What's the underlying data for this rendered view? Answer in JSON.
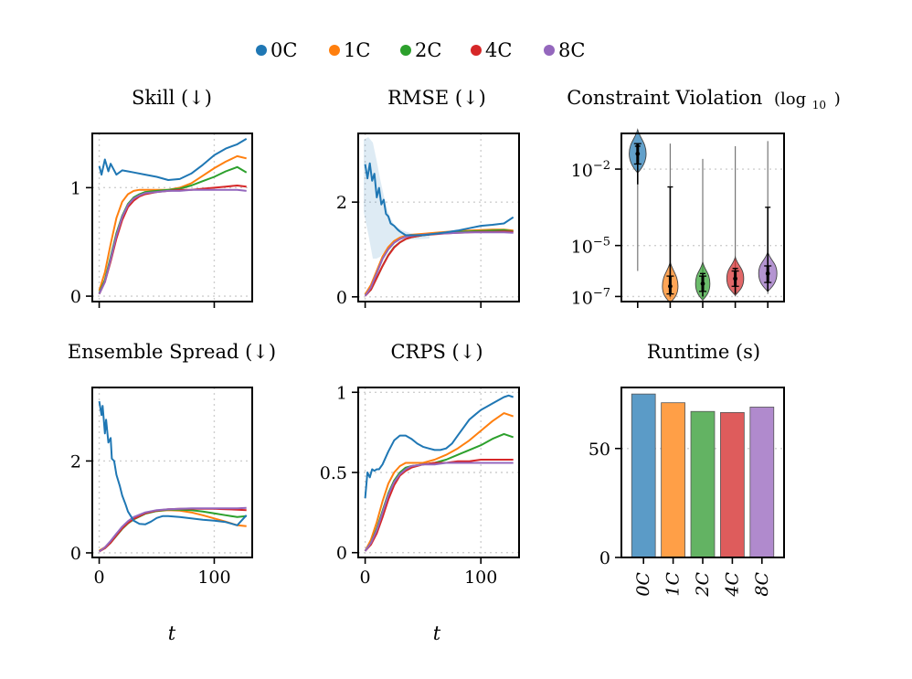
{
  "legend": {
    "entries": [
      {
        "label": "0C",
        "color": "#1f77b4"
      },
      {
        "label": "1C",
        "color": "#ff7f0e"
      },
      {
        "label": "2C",
        "color": "#2ca02c"
      },
      {
        "label": "4C",
        "color": "#d62728"
      },
      {
        "label": "8C",
        "color": "#9467bd"
      }
    ]
  },
  "chart_data": [
    {
      "id": "skill",
      "type": "line",
      "title": "Skill (↓)",
      "xlabel": "",
      "ylabel": "",
      "xlim": [
        -6,
        133
      ],
      "ylim": [
        -0.05,
        1.5
      ],
      "xticks": [
        0,
        100
      ],
      "xtick_labels": [
        "",
        ""
      ],
      "yticks": [
        0,
        1
      ],
      "ytick_labels": [
        "0",
        "1"
      ],
      "series": [
        {
          "name": "0C",
          "x": [
            0,
            2,
            5,
            8,
            10,
            15,
            20,
            25,
            30,
            40,
            50,
            60,
            70,
            80,
            90,
            100,
            110,
            120,
            128
          ],
          "y": [
            1.2,
            1.12,
            1.26,
            1.15,
            1.22,
            1.12,
            1.16,
            1.15,
            1.14,
            1.12,
            1.1,
            1.07,
            1.08,
            1.13,
            1.21,
            1.3,
            1.36,
            1.4,
            1.45
          ]
        },
        {
          "name": "1C",
          "x": [
            0,
            5,
            10,
            15,
            20,
            25,
            30,
            35,
            40,
            50,
            60,
            70,
            80,
            90,
            100,
            110,
            120,
            128
          ],
          "y": [
            0.05,
            0.22,
            0.48,
            0.72,
            0.87,
            0.94,
            0.97,
            0.98,
            0.98,
            0.98,
            0.98,
            1.0,
            1.04,
            1.11,
            1.18,
            1.24,
            1.29,
            1.27
          ]
        },
        {
          "name": "2C",
          "x": [
            0,
            5,
            10,
            15,
            20,
            25,
            30,
            35,
            40,
            50,
            60,
            70,
            80,
            90,
            100,
            110,
            120,
            128
          ],
          "y": [
            0.03,
            0.15,
            0.36,
            0.58,
            0.74,
            0.85,
            0.91,
            0.94,
            0.96,
            0.97,
            0.98,
            0.99,
            1.02,
            1.06,
            1.1,
            1.15,
            1.19,
            1.14
          ]
        },
        {
          "name": "4C",
          "x": [
            0,
            5,
            10,
            15,
            20,
            25,
            30,
            35,
            40,
            50,
            60,
            70,
            80,
            90,
            100,
            110,
            120,
            128
          ],
          "y": [
            0.02,
            0.13,
            0.32,
            0.53,
            0.7,
            0.82,
            0.88,
            0.92,
            0.94,
            0.96,
            0.97,
            0.98,
            0.98,
            0.99,
            1.0,
            1.01,
            1.02,
            1.01
          ]
        },
        {
          "name": "8C",
          "x": [
            0,
            5,
            10,
            15,
            20,
            25,
            30,
            35,
            40,
            50,
            60,
            70,
            80,
            90,
            100,
            110,
            120,
            128
          ],
          "y": [
            0.02,
            0.13,
            0.34,
            0.56,
            0.73,
            0.84,
            0.9,
            0.93,
            0.95,
            0.96,
            0.97,
            0.97,
            0.98,
            0.98,
            0.98,
            0.98,
            0.98,
            0.97
          ]
        }
      ]
    },
    {
      "id": "rmse",
      "type": "line",
      "title": "RMSE (↓)",
      "xlabel": "",
      "ylabel": "",
      "xlim": [
        -6,
        133
      ],
      "ylim": [
        -0.1,
        3.45
      ],
      "xticks": [
        0,
        100
      ],
      "xtick_labels": [
        "",
        ""
      ],
      "yticks": [
        0,
        2
      ],
      "ytick_labels": [
        "0",
        "2"
      ],
      "series": [
        {
          "name": "0C",
          "x": [
            0,
            2,
            4,
            6,
            8,
            10,
            12,
            14,
            16,
            18,
            20,
            22,
            25,
            28,
            30,
            35,
            40,
            50,
            60,
            70,
            80,
            90,
            100,
            110,
            120,
            128
          ],
          "y": [
            2.8,
            2.5,
            2.82,
            2.45,
            2.6,
            2.1,
            2.3,
            1.95,
            2.05,
            1.75,
            1.7,
            1.55,
            1.5,
            1.42,
            1.38,
            1.3,
            1.3,
            1.3,
            1.33,
            1.36,
            1.4,
            1.45,
            1.5,
            1.52,
            1.55,
            1.68
          ]
        },
        {
          "name": "1C",
          "x": [
            0,
            5,
            10,
            15,
            20,
            25,
            30,
            35,
            40,
            50,
            60,
            70,
            80,
            90,
            100,
            110,
            120,
            128
          ],
          "y": [
            0.05,
            0.25,
            0.55,
            0.85,
            1.05,
            1.18,
            1.25,
            1.29,
            1.31,
            1.33,
            1.35,
            1.37,
            1.39,
            1.4,
            1.41,
            1.42,
            1.42,
            1.4
          ]
        },
        {
          "name": "2C",
          "x": [
            0,
            5,
            10,
            15,
            20,
            25,
            30,
            35,
            40,
            50,
            60,
            70,
            80,
            90,
            100,
            110,
            120,
            128
          ],
          "y": [
            0.03,
            0.15,
            0.4,
            0.65,
            0.88,
            1.05,
            1.15,
            1.22,
            1.26,
            1.3,
            1.33,
            1.35,
            1.37,
            1.38,
            1.39,
            1.4,
            1.41,
            1.38
          ]
        },
        {
          "name": "4C",
          "x": [
            0,
            5,
            10,
            15,
            20,
            25,
            30,
            35,
            40,
            50,
            60,
            70,
            80,
            90,
            100,
            110,
            120,
            128
          ],
          "y": [
            0.02,
            0.15,
            0.4,
            0.65,
            0.87,
            1.04,
            1.15,
            1.22,
            1.26,
            1.3,
            1.32,
            1.34,
            1.35,
            1.36,
            1.37,
            1.37,
            1.38,
            1.37
          ]
        },
        {
          "name": "8C",
          "x": [
            0,
            5,
            10,
            15,
            20,
            25,
            30,
            35,
            40,
            50,
            60,
            70,
            80,
            90,
            100,
            110,
            120,
            128
          ],
          "y": [
            0.02,
            0.2,
            0.5,
            0.8,
            1.0,
            1.14,
            1.22,
            1.27,
            1.29,
            1.31,
            1.33,
            1.34,
            1.35,
            1.36,
            1.36,
            1.36,
            1.36,
            1.35
          ]
        }
      ]
    },
    {
      "id": "violation",
      "type": "violin",
      "title": "Constraint Violation",
      "title_suffix": "(log",
      "title_subscript": "10",
      "title_close": ")",
      "categories": [
        "0C",
        "1C",
        "2C",
        "4C",
        "8C"
      ],
      "yscale": "log10",
      "ylim_log10": [
        -7.2,
        -0.6
      ],
      "yticks_log10": [
        -2,
        -5,
        -7
      ],
      "ytick_bases": [
        "10",
        "10",
        "10"
      ],
      "ytick_exponents": [
        "−2",
        "−5",
        "−7"
      ],
      "medians_log10": [
        -1.4,
        -6.6,
        -6.5,
        -6.3,
        -6.1
      ],
      "q1_log10": [
        -1.8,
        -6.9,
        -6.8,
        -6.6,
        -6.45
      ],
      "q3_log10": [
        -1.0,
        -6.2,
        -6.2,
        -6.0,
        -5.8
      ],
      "whisker_low_log10": [
        -2.6,
        -7.0,
        -7.0,
        -6.9,
        -6.8
      ],
      "whisker_high_log10": [
        -1.1,
        -2.7,
        -6.1,
        -5.9,
        -3.5
      ],
      "min_log10": [
        -6.0,
        -7.1,
        -7.1,
        -7.0,
        -6.9
      ],
      "max_log10": [
        -1.2,
        -1.0,
        -1.6,
        -1.1,
        -0.9
      ],
      "widths": [
        0.26,
        0.24,
        0.22,
        0.26,
        0.28
      ]
    },
    {
      "id": "spread",
      "type": "line",
      "title": "Ensemble Spread (↓)",
      "xlabel": "t",
      "ylabel": "",
      "xlim": [
        -6,
        133
      ],
      "ylim": [
        -0.1,
        3.6
      ],
      "xticks": [
        0,
        100
      ],
      "xtick_labels": [
        "0",
        "100"
      ],
      "yticks": [
        0,
        2
      ],
      "ytick_labels": [
        "0",
        "2"
      ],
      "series": [
        {
          "name": "0C",
          "x": [
            0,
            2,
            3,
            5,
            6,
            8,
            10,
            11,
            13,
            15,
            18,
            20,
            23,
            25,
            28,
            30,
            35,
            40,
            45,
            50,
            55,
            60,
            70,
            80,
            90,
            100,
            110,
            120,
            128
          ],
          "y": [
            3.3,
            3.0,
            3.2,
            2.6,
            2.9,
            2.4,
            2.5,
            2.05,
            2.0,
            1.7,
            1.45,
            1.25,
            1.05,
            0.9,
            0.78,
            0.7,
            0.63,
            0.62,
            0.68,
            0.76,
            0.8,
            0.8,
            0.78,
            0.75,
            0.72,
            0.7,
            0.67,
            0.6,
            0.82
          ]
        },
        {
          "name": "1C",
          "x": [
            0,
            5,
            10,
            15,
            20,
            25,
            30,
            40,
            50,
            60,
            70,
            80,
            90,
            100,
            110,
            120,
            128
          ],
          "y": [
            0.05,
            0.12,
            0.25,
            0.4,
            0.55,
            0.66,
            0.75,
            0.86,
            0.91,
            0.93,
            0.92,
            0.88,
            0.82,
            0.75,
            0.68,
            0.6,
            0.58
          ]
        },
        {
          "name": "2C",
          "x": [
            0,
            5,
            10,
            15,
            20,
            25,
            30,
            40,
            50,
            60,
            70,
            80,
            90,
            100,
            110,
            120,
            128
          ],
          "y": [
            0.04,
            0.1,
            0.22,
            0.37,
            0.52,
            0.64,
            0.73,
            0.85,
            0.91,
            0.94,
            0.94,
            0.93,
            0.9,
            0.86,
            0.82,
            0.78,
            0.8
          ]
        },
        {
          "name": "4C",
          "x": [
            0,
            5,
            10,
            15,
            20,
            25,
            30,
            40,
            50,
            60,
            70,
            80,
            90,
            100,
            110,
            120,
            128
          ],
          "y": [
            0.03,
            0.1,
            0.22,
            0.38,
            0.53,
            0.65,
            0.74,
            0.86,
            0.92,
            0.95,
            0.96,
            0.96,
            0.96,
            0.96,
            0.95,
            0.94,
            0.93
          ]
        },
        {
          "name": "8C",
          "x": [
            0,
            5,
            10,
            15,
            20,
            25,
            30,
            40,
            50,
            60,
            70,
            80,
            90,
            100,
            110,
            120,
            128
          ],
          "y": [
            0.03,
            0.12,
            0.26,
            0.42,
            0.57,
            0.69,
            0.78,
            0.88,
            0.93,
            0.95,
            0.96,
            0.97,
            0.97,
            0.97,
            0.97,
            0.97,
            0.98
          ]
        }
      ]
    },
    {
      "id": "crps",
      "type": "line",
      "title": "CRPS (↓)",
      "xlabel": "t",
      "ylabel": "",
      "xlim": [
        -6,
        133
      ],
      "ylim": [
        -0.03,
        1.03
      ],
      "xticks": [
        0,
        100
      ],
      "xtick_labels": [
        "0",
        "100"
      ],
      "yticks": [
        0,
        0.5,
        1
      ],
      "ytick_labels": [
        "0",
        "0.5",
        "1"
      ],
      "series": [
        {
          "name": "0C",
          "x": [
            0,
            2,
            4,
            6,
            8,
            10,
            12,
            15,
            20,
            25,
            30,
            35,
            40,
            45,
            50,
            55,
            60,
            65,
            70,
            75,
            80,
            85,
            90,
            95,
            100,
            105,
            110,
            115,
            120,
            124,
            128
          ],
          "y": [
            0.34,
            0.5,
            0.47,
            0.52,
            0.51,
            0.52,
            0.52,
            0.55,
            0.63,
            0.7,
            0.73,
            0.73,
            0.71,
            0.68,
            0.66,
            0.65,
            0.64,
            0.64,
            0.65,
            0.68,
            0.73,
            0.78,
            0.83,
            0.86,
            0.89,
            0.91,
            0.93,
            0.95,
            0.97,
            0.98,
            0.97
          ]
        },
        {
          "name": "1C",
          "x": [
            0,
            5,
            10,
            15,
            20,
            25,
            30,
            35,
            40,
            50,
            60,
            70,
            80,
            90,
            100,
            110,
            120,
            128
          ],
          "y": [
            0.01,
            0.08,
            0.19,
            0.32,
            0.43,
            0.5,
            0.54,
            0.56,
            0.56,
            0.56,
            0.58,
            0.61,
            0.65,
            0.7,
            0.76,
            0.82,
            0.87,
            0.85
          ]
        },
        {
          "name": "2C",
          "x": [
            0,
            5,
            10,
            15,
            20,
            25,
            30,
            35,
            40,
            50,
            60,
            70,
            80,
            90,
            100,
            110,
            120,
            128
          ],
          "y": [
            0.01,
            0.06,
            0.15,
            0.26,
            0.37,
            0.45,
            0.5,
            0.53,
            0.54,
            0.55,
            0.56,
            0.58,
            0.61,
            0.64,
            0.67,
            0.71,
            0.74,
            0.72
          ]
        },
        {
          "name": "4C",
          "x": [
            0,
            5,
            10,
            15,
            20,
            25,
            30,
            35,
            40,
            50,
            60,
            70,
            80,
            90,
            100,
            110,
            120,
            128
          ],
          "y": [
            0.01,
            0.05,
            0.12,
            0.22,
            0.33,
            0.42,
            0.48,
            0.51,
            0.53,
            0.55,
            0.56,
            0.56,
            0.57,
            0.57,
            0.58,
            0.58,
            0.58,
            0.58
          ]
        },
        {
          "name": "8C",
          "x": [
            0,
            5,
            10,
            15,
            20,
            25,
            30,
            35,
            40,
            50,
            60,
            70,
            80,
            90,
            100,
            110,
            120,
            128
          ],
          "y": [
            0.01,
            0.06,
            0.14,
            0.25,
            0.36,
            0.44,
            0.49,
            0.52,
            0.54,
            0.55,
            0.55,
            0.56,
            0.56,
            0.56,
            0.56,
            0.56,
            0.56,
            0.56
          ]
        }
      ]
    },
    {
      "id": "runtime",
      "type": "bar",
      "title": "Runtime (s)",
      "categories": [
        "0C",
        "1C",
        "2C",
        "4C",
        "8C"
      ],
      "values": [
        75,
        71,
        67,
        66.5,
        69
      ],
      "ylim": [
        0,
        78
      ],
      "yticks": [
        0,
        50
      ],
      "ytick_labels": [
        "0",
        "50"
      ],
      "bar_colors": [
        "#5b9bc7",
        "#ff9f47",
        "#63b363",
        "#de5c5c",
        "#b08acd"
      ]
    }
  ]
}
